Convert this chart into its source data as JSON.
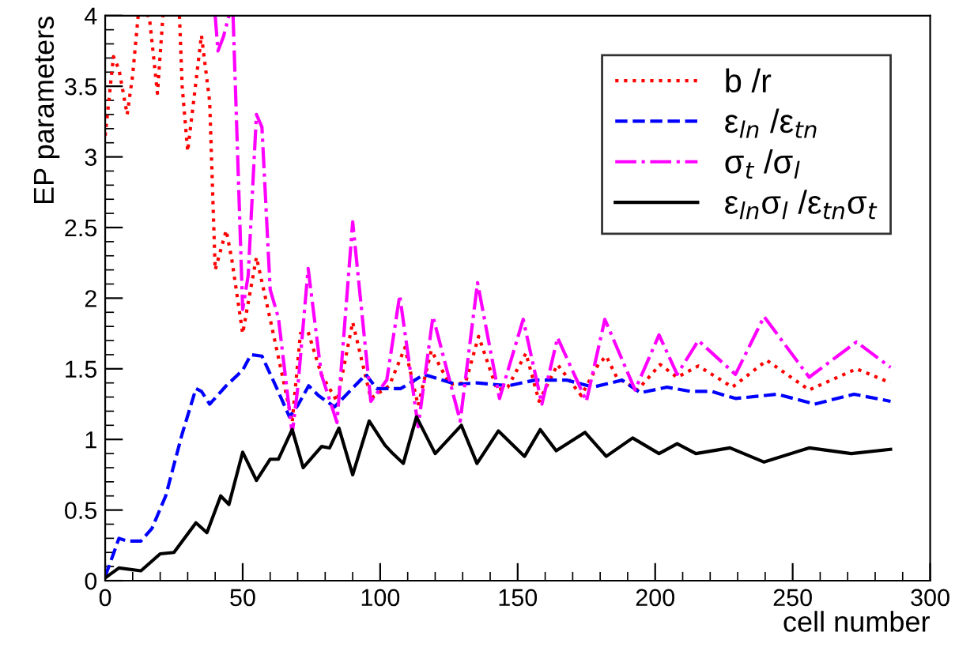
{
  "chart_data": {
    "type": "line",
    "xlabel": "cell number",
    "ylabel": "EP parameters",
    "xlim": [
      0,
      300
    ],
    "ylim": [
      0,
      4
    ],
    "xticks": [
      0,
      50,
      100,
      150,
      200,
      250,
      300
    ],
    "yticks": [
      0,
      0.5,
      1,
      1.5,
      2,
      2.5,
      3,
      3.5,
      4
    ],
    "grid": false,
    "legend": "top right",
    "marker": "none",
    "series": [
      {
        "name": "b /r",
        "color": "#ff0000",
        "line_style": "dotted",
        "x": [
          0,
          3,
          5,
          8,
          10,
          12,
          13,
          15,
          16,
          19,
          21,
          22,
          27,
          28,
          30,
          35,
          38,
          40,
          44,
          46,
          50,
          55,
          59,
          64,
          68,
          71,
          73.8,
          78.6,
          84.3,
          90,
          96.6,
          103.3,
          109,
          113.8,
          118.6,
          125.3,
          131,
          135.8,
          142.5,
          146.4,
          153,
          157.8,
          164.5,
          173.1,
          179.3,
          182.2,
          186,
          193.6,
          201.8,
          208,
          215.7,
          228.1,
          240.6,
          256,
          273.2,
          285.6
        ],
        "values": [
          3.15,
          3.71,
          3.62,
          3.3,
          3.58,
          4.0,
          null,
          4.0,
          4.0,
          3.45,
          4.0,
          null,
          4.0,
          3.5,
          3.04,
          3.86,
          3.39,
          2.2,
          2.48,
          2.28,
          1.75,
          2.29,
          1.94,
          1.49,
          1.12,
          1.75,
          1.76,
          1.46,
          1.27,
          1.83,
          1.29,
          1.38,
          1.65,
          1.24,
          1.63,
          1.39,
          1.4,
          1.73,
          1.35,
          1.37,
          1.61,
          1.27,
          1.53,
          1.31,
          1.53,
          1.59,
          1.44,
          1.35,
          1.53,
          1.44,
          1.52,
          1.37,
          1.56,
          1.35,
          1.5,
          1.4
        ]
      },
      {
        "name": "ε$_{ln}$ /ε$_{tn}$",
        "color": "#0000ff",
        "line_style": "dashed",
        "x": [
          0,
          3,
          5,
          8,
          13,
          17,
          22,
          28,
          33,
          35,
          38,
          44,
          50,
          53,
          57,
          62,
          67,
          70,
          74,
          77.6,
          83.4,
          94.8,
          98.7,
          107.5,
          116,
          127.6,
          135.2,
          146.7,
          156.3,
          167.8,
          177.4,
          188,
          194.6,
          204.3,
          212.8,
          220.5,
          229.2,
          244.5,
          258,
          272.3,
          285.6
        ],
        "values": [
          0.03,
          0.19,
          0.3,
          0.28,
          0.28,
          0.37,
          0.6,
          1.04,
          1.36,
          1.34,
          1.25,
          1.38,
          1.49,
          1.6,
          1.59,
          1.38,
          1.16,
          1.24,
          1.38,
          1.31,
          1.23,
          1.46,
          1.36,
          1.36,
          1.46,
          1.39,
          1.4,
          1.38,
          1.42,
          1.42,
          1.37,
          1.42,
          1.33,
          1.37,
          1.34,
          1.34,
          1.29,
          1.32,
          1.25,
          1.32,
          1.27
        ]
      },
      {
        "name": "σ$_{t}$ /σ$_{l}$",
        "color": "#ff00ff",
        "line_style": "dashdot",
        "x": [
          40,
          41,
          43,
          45,
          46,
          46.5,
          50,
          52,
          55,
          57,
          60,
          63,
          68,
          70,
          73.8,
          78.6,
          84.3,
          90,
          96.6,
          102.4,
          107.1,
          113.8,
          119.2,
          129.1,
          135.4,
          143.4,
          152,
          158.8,
          164.5,
          175,
          181.7,
          192.7,
          201.4,
          208,
          215.7,
          229.2,
          239.6,
          256,
          273.2,
          285.6
        ],
        "values": [
          4.0,
          3.75,
          3.85,
          4.0,
          null,
          4.0,
          1.92,
          2.16,
          3.3,
          3.21,
          2.06,
          1.86,
          1.04,
          1.36,
          2.21,
          1.46,
          1.12,
          2.54,
          1.27,
          1.42,
          2.02,
          1.09,
          1.87,
          1.13,
          2.11,
          1.29,
          1.85,
          1.25,
          1.72,
          1.27,
          1.85,
          1.35,
          1.74,
          1.46,
          1.7,
          1.46,
          1.87,
          1.44,
          1.69,
          1.51
        ]
      },
      {
        "name": "ε$_{ln}$σ$_{l}$ /ε$_{tn}$σ$_{t}$",
        "color": "#000000",
        "line_style": "solid",
        "x": [
          0,
          5,
          13,
          20,
          25,
          33,
          37,
          42,
          45,
          50,
          55,
          60,
          63,
          68,
          72,
          78.7,
          81.6,
          85,
          90,
          96,
          101.7,
          104.6,
          108.4,
          113.2,
          120,
          129.5,
          135.2,
          143,
          152.5,
          158.2,
          164,
          174.5,
          182.2,
          191.8,
          201.4,
          208,
          214.8,
          227.2,
          239.6,
          256,
          271.3,
          285.6
        ],
        "values": [
          0.02,
          0.09,
          0.07,
          0.19,
          0.2,
          0.41,
          0.34,
          0.6,
          0.54,
          0.91,
          0.71,
          0.86,
          0.86,
          1.07,
          0.8,
          0.95,
          0.94,
          1.08,
          0.75,
          1.13,
          0.96,
          0.9,
          0.83,
          1.16,
          0.9,
          1.1,
          0.83,
          1.06,
          0.88,
          1.07,
          0.92,
          1.05,
          0.88,
          1.01,
          0.9,
          0.97,
          0.9,
          0.94,
          0.84,
          0.94,
          0.9,
          0.93
        ]
      }
    ]
  }
}
